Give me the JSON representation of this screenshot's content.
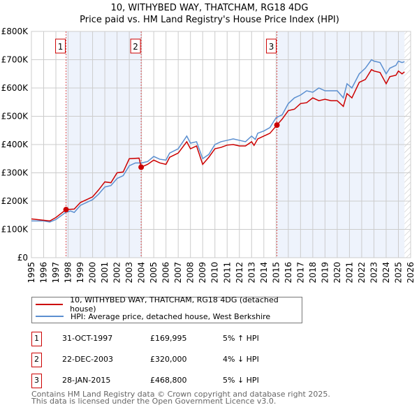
{
  "chart_data": {
    "type": "line",
    "title": "10, WITHYBED WAY, THATCHAM, RG18 4DG",
    "subtitle": "Price paid vs. HM Land Registry's House Price Index (HPI)",
    "xlim": [
      1995,
      2026
    ],
    "ylim": [
      0,
      800000
    ],
    "x_ticks": [
      "1995",
      "1996",
      "1997",
      "1998",
      "1999",
      "2000",
      "2001",
      "2002",
      "2003",
      "2004",
      "2005",
      "2006",
      "2007",
      "2008",
      "2009",
      "2010",
      "2011",
      "2012",
      "2013",
      "2014",
      "2015",
      "2016",
      "2017",
      "2018",
      "2019",
      "2020",
      "2021",
      "2022",
      "2023",
      "2024",
      "2025",
      "2026"
    ],
    "y_ticks": [
      {
        "v": 0,
        "label": "£0"
      },
      {
        "v": 100000,
        "label": "£100K"
      },
      {
        "v": 200000,
        "label": "£200K"
      },
      {
        "v": 300000,
        "label": "£300K"
      },
      {
        "v": 400000,
        "label": "£400K"
      },
      {
        "v": 500000,
        "label": "£500K"
      },
      {
        "v": 600000,
        "label": "£600K"
      },
      {
        "v": 700000,
        "label": "£700K"
      },
      {
        "v": 800000,
        "label": "£800K"
      }
    ],
    "grid": true,
    "series": [
      {
        "name": "10, WITHYBED WAY, THATCHAM, RG18 4DG (detached house)",
        "color": "#cc0000",
        "points": [
          [
            1995,
            137
          ],
          [
            1996.5,
            130
          ],
          [
            1997,
            142
          ],
          [
            1997.83,
            170
          ],
          [
            1998.5,
            172
          ],
          [
            1999,
            195
          ],
          [
            2000,
            215
          ],
          [
            2000.5,
            240
          ],
          [
            2001,
            268
          ],
          [
            2001.5,
            265
          ],
          [
            2002,
            300
          ],
          [
            2002.5,
            303
          ],
          [
            2003,
            350
          ],
          [
            2003.8,
            352
          ],
          [
            2003.97,
            320
          ],
          [
            2004.5,
            330
          ],
          [
            2005,
            345
          ],
          [
            2005.5,
            335
          ],
          [
            2006,
            330
          ],
          [
            2006.3,
            355
          ],
          [
            2007,
            370
          ],
          [
            2007.7,
            410
          ],
          [
            2008,
            385
          ],
          [
            2008.5,
            395
          ],
          [
            2009,
            330
          ],
          [
            2009.5,
            355
          ],
          [
            2010,
            385
          ],
          [
            2010.5,
            390
          ],
          [
            2011,
            398
          ],
          [
            2011.5,
            400
          ],
          [
            2012,
            395
          ],
          [
            2012.5,
            395
          ],
          [
            2013,
            410
          ],
          [
            2013.2,
            397
          ],
          [
            2013.5,
            420
          ],
          [
            2014,
            430
          ],
          [
            2014.5,
            440
          ],
          [
            2015.07,
            469
          ],
          [
            2015.5,
            490
          ],
          [
            2016,
            520
          ],
          [
            2016.5,
            525
          ],
          [
            2017,
            545
          ],
          [
            2017.5,
            548
          ],
          [
            2018,
            565
          ],
          [
            2018.5,
            555
          ],
          [
            2019,
            560
          ],
          [
            2019.5,
            555
          ],
          [
            2020,
            555
          ],
          [
            2020.5,
            535
          ],
          [
            2020.8,
            580
          ],
          [
            2021.2,
            565
          ],
          [
            2021.8,
            620
          ],
          [
            2022.3,
            630
          ],
          [
            2022.8,
            665
          ],
          [
            2023,
            660
          ],
          [
            2023.5,
            655
          ],
          [
            2024,
            615
          ],
          [
            2024.3,
            640
          ],
          [
            2024.8,
            645
          ],
          [
            2025,
            660
          ],
          [
            2025.3,
            650
          ],
          [
            2025.5,
            657
          ]
        ]
      },
      {
        "name": "HPI: Average price, detached house, West Berkshire",
        "color": "#5b8fd0",
        "points": [
          [
            1995,
            130
          ],
          [
            1996,
            130
          ],
          [
            1996.5,
            126
          ],
          [
            1997,
            135
          ],
          [
            1997.8,
            160
          ],
          [
            1998.2,
            165
          ],
          [
            1998.5,
            160
          ],
          [
            1999,
            185
          ],
          [
            2000,
            205
          ],
          [
            2000.5,
            225
          ],
          [
            2001,
            250
          ],
          [
            2001.5,
            255
          ],
          [
            2002,
            280
          ],
          [
            2002.5,
            290
          ],
          [
            2003,
            325
          ],
          [
            2003.5,
            335
          ],
          [
            2004,
            335
          ],
          [
            2004.5,
            340
          ],
          [
            2005,
            358
          ],
          [
            2005.5,
            348
          ],
          [
            2006,
            345
          ],
          [
            2006.3,
            370
          ],
          [
            2007,
            385
          ],
          [
            2007.7,
            430
          ],
          [
            2008,
            405
          ],
          [
            2008.5,
            410
          ],
          [
            2009,
            350
          ],
          [
            2009.5,
            365
          ],
          [
            2010,
            400
          ],
          [
            2010.5,
            410
          ],
          [
            2011,
            415
          ],
          [
            2011.5,
            420
          ],
          [
            2012,
            415
          ],
          [
            2012.5,
            410
          ],
          [
            2013,
            430
          ],
          [
            2013.3,
            418
          ],
          [
            2013.5,
            440
          ],
          [
            2014,
            448
          ],
          [
            2014.5,
            460
          ],
          [
            2015,
            495
          ],
          [
            2015.5,
            505
          ],
          [
            2016,
            545
          ],
          [
            2016.5,
            565
          ],
          [
            2017,
            575
          ],
          [
            2017.5,
            590
          ],
          [
            2018,
            585
          ],
          [
            2018.5,
            600
          ],
          [
            2019,
            590
          ],
          [
            2019.5,
            590
          ],
          [
            2020,
            590
          ],
          [
            2020.5,
            565
          ],
          [
            2020.8,
            615
          ],
          [
            2021.2,
            600
          ],
          [
            2021.8,
            650
          ],
          [
            2022.3,
            670
          ],
          [
            2022.8,
            700
          ],
          [
            2023,
            695
          ],
          [
            2023.5,
            690
          ],
          [
            2024,
            650
          ],
          [
            2024.3,
            670
          ],
          [
            2024.8,
            680
          ],
          [
            2025,
            695
          ],
          [
            2025.3,
            690
          ],
          [
            2025.5,
            693
          ]
        ]
      }
    ],
    "value_unit": "£K",
    "shaded_ranges": [
      [
        1997.83,
        2003.97
      ],
      [
        2015.07,
        2025.5
      ]
    ],
    "hatched_from": 2025.5,
    "sales": [
      {
        "label": "1",
        "x": 1997.83,
        "value": 169995,
        "date": "31-OCT-1997",
        "price": "£169,995",
        "hpi": "5% ↑ HPI"
      },
      {
        "label": "2",
        "x": 2003.97,
        "value": 320000,
        "date": "22-DEC-2003",
        "price": "£320,000",
        "hpi": "4% ↓ HPI"
      },
      {
        "label": "3",
        "x": 2015.07,
        "value": 468800,
        "date": "28-JAN-2015",
        "price": "£468,800",
        "hpi": "5% ↓ HPI"
      }
    ],
    "legend_position": "below"
  },
  "footer": {
    "line1": "Contains HM Land Registry data © Crown copyright and database right 2025.",
    "line2": "This data is licensed under the Open Government Licence v3.0."
  }
}
